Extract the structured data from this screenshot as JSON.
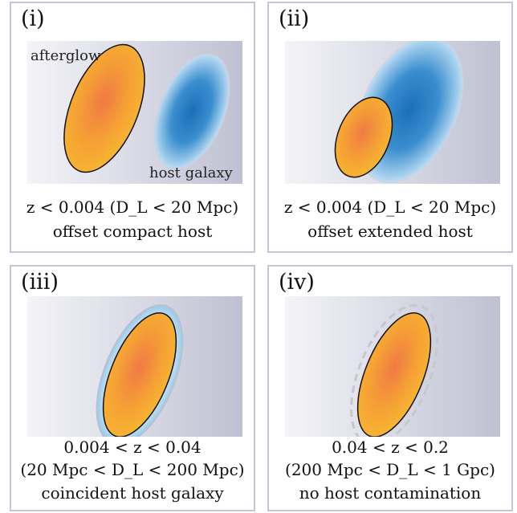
{
  "panels": [
    {
      "label": "(i)",
      "afterglow_label": "afterglow",
      "host_label": "host galaxy",
      "caption": [
        "z < 0.004  (D_L < 20 Mpc)",
        "offset compact host"
      ]
    },
    {
      "label": "(ii)",
      "caption": [
        "z < 0.004  (D_L < 20 Mpc)",
        "offset extended host"
      ]
    },
    {
      "label": "(iii)",
      "caption": [
        "0.004 < z < 0.04",
        "(20 Mpc < D_L < 200 Mpc)",
        "coincident host galaxy"
      ]
    },
    {
      "label": "(iv)",
      "caption": [
        "0.04 < z < 0.2",
        "(200 Mpc < D_L < 1 Gpc)",
        "no host contamination"
      ]
    }
  ],
  "colors": {
    "afterglow_core": "#ef7a45",
    "afterglow_edge": "#f7b732",
    "host_core": "#1a6fb8",
    "host_edge": "#d8ebf7",
    "background_left": "#f4f4f8",
    "background_right": "#bfc1d3",
    "panel_border": "#c6c6d6"
  }
}
